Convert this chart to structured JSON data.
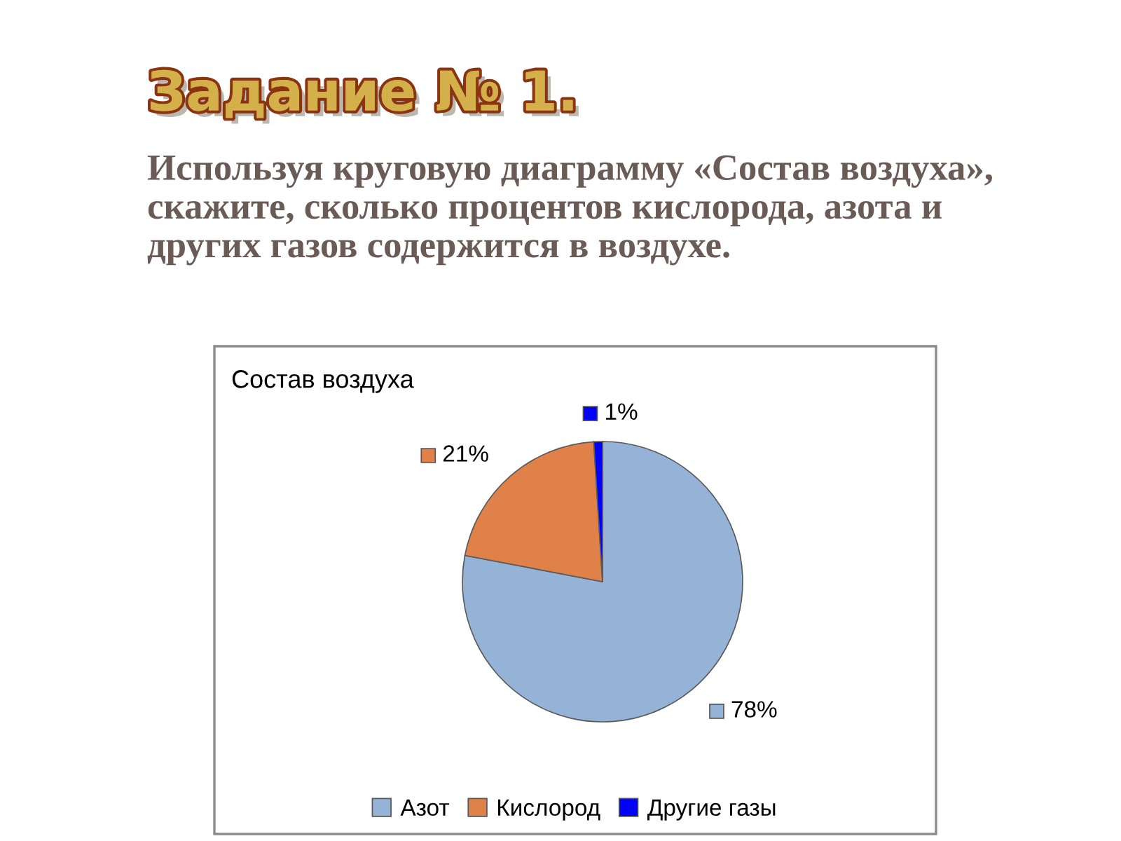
{
  "chart_data": {
    "type": "pie",
    "title": "Состав воздуха",
    "categories": [
      "Азот",
      "Кислород",
      "Другие газы"
    ],
    "values": [
      78,
      21,
      1
    ],
    "colors": [
      "#95b3d7",
      "#e0814a",
      "#0000ff"
    ],
    "value_labels": [
      "78%",
      "21%",
      "1%"
    ],
    "legend": "bottom",
    "annotations": [
      "Задание № 1.",
      "Используя круговую диаграмму «Состав воздуха», скажите, сколько процентов кислорода, азота и других газов содержится в воздухе."
    ]
  }
}
